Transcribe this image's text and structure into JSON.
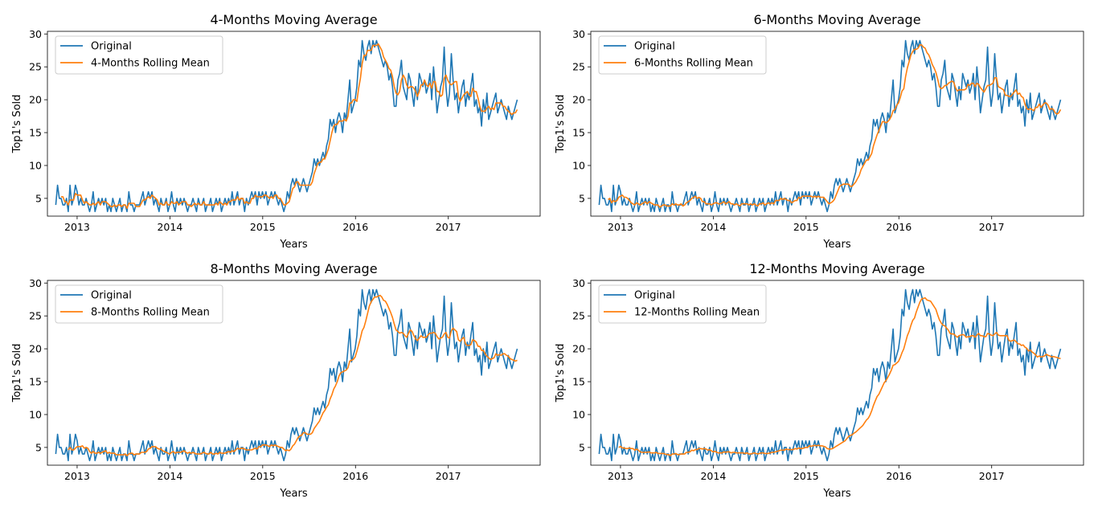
{
  "chart_data": [
    {
      "type": "line",
      "title": "4-Months Moving Average",
      "xlabel": "Years",
      "ylabel": "Top1's Sold",
      "x_ticks": [
        "2013",
        "2014",
        "2015",
        "2016",
        "2017"
      ],
      "y_ticks": [
        5,
        10,
        15,
        20,
        25,
        30
      ],
      "xlim": [
        2012.68,
        2017.99
      ],
      "ylim": [
        2.3,
        30.4
      ],
      "grid": false,
      "legend": "upper left",
      "window": 4,
      "series": [
        {
          "name": "Original",
          "color": "#1f77b4"
        },
        {
          "name": "4-Months Rolling Mean",
          "color": "#ff7f0e"
        }
      ]
    },
    {
      "type": "line",
      "title": "6-Months Moving Average",
      "xlabel": "Years",
      "ylabel": "Top1's Sold",
      "x_ticks": [
        "2013",
        "2014",
        "2015",
        "2016",
        "2017"
      ],
      "y_ticks": [
        5,
        10,
        15,
        20,
        25,
        30
      ],
      "xlim": [
        2012.68,
        2017.99
      ],
      "ylim": [
        2.3,
        30.4
      ],
      "grid": false,
      "legend": "upper left",
      "window": 6,
      "series": [
        {
          "name": "Original",
          "color": "#1f77b4"
        },
        {
          "name": "6-Months Rolling Mean",
          "color": "#ff7f0e"
        }
      ]
    },
    {
      "type": "line",
      "title": "8-Months Moving Average",
      "xlabel": "Years",
      "ylabel": "Top1's Sold",
      "x_ticks": [
        "2013",
        "2014",
        "2015",
        "2016",
        "2017"
      ],
      "y_ticks": [
        5,
        10,
        15,
        20,
        25,
        30
      ],
      "xlim": [
        2012.68,
        2017.99
      ],
      "ylim": [
        2.3,
        30.4
      ],
      "grid": false,
      "legend": "upper left",
      "window": 8,
      "series": [
        {
          "name": "Original",
          "color": "#1f77b4"
        },
        {
          "name": "8-Months Rolling Mean",
          "color": "#ff7f0e"
        }
      ]
    },
    {
      "type": "line",
      "title": "12-Months Moving Average",
      "xlabel": "Years",
      "ylabel": "Top1's Sold",
      "x_ticks": [
        "2013",
        "2014",
        "2015",
        "2016",
        "2017"
      ],
      "y_ticks": [
        5,
        10,
        15,
        20,
        25,
        30
      ],
      "xlim": [
        2012.68,
        2017.99
      ],
      "ylim": [
        2.3,
        30.4
      ],
      "grid": false,
      "legend": "upper left",
      "window": 12,
      "series": [
        {
          "name": "Original",
          "color": "#1f77b4"
        },
        {
          "name": "12-Months Rolling Mean",
          "color": "#ff7f0e"
        }
      ]
    }
  ],
  "original_series": {
    "start_year": 2012.77,
    "step_years": 0.0192,
    "values": [
      4,
      7,
      5,
      5,
      4,
      4,
      5,
      3,
      7,
      4,
      5,
      7,
      6,
      4,
      5,
      4,
      4,
      5,
      4,
      3,
      4,
      6,
      3,
      4,
      5,
      4,
      5,
      4,
      5,
      3,
      4,
      3,
      5,
      4,
      3,
      4,
      5,
      3,
      4,
      4,
      3,
      6,
      4,
      4,
      3,
      4,
      4,
      4,
      5,
      6,
      4,
      5,
      6,
      5,
      6,
      4,
      5,
      4,
      3,
      5,
      4,
      4,
      5,
      3,
      4,
      6,
      4,
      3,
      5,
      4,
      5,
      4,
      5,
      4,
      3,
      4,
      4,
      5,
      4,
      3,
      5,
      4,
      4,
      5,
      3,
      4,
      4,
      5,
      3,
      4,
      5,
      4,
      5,
      3,
      4,
      5,
      4,
      5,
      4,
      6,
      4,
      5,
      6,
      4,
      5,
      5,
      3,
      5,
      4,
      5,
      6,
      5,
      6,
      4,
      6,
      5,
      6,
      5,
      6,
      4,
      5,
      6,
      5,
      6,
      5,
      4,
      5,
      4,
      3,
      4,
      6,
      5,
      7,
      8,
      7,
      8,
      7,
      6,
      7,
      8,
      7,
      6,
      7,
      8,
      9,
      11,
      10,
      11,
      10,
      11,
      12,
      11,
      13,
      14,
      17,
      16,
      17,
      15,
      17,
      18,
      17,
      15,
      18,
      17,
      20,
      23,
      18,
      19,
      20,
      22,
      26,
      25,
      29,
      27,
      26,
      28,
      29,
      27,
      29,
      28,
      29,
      28,
      27,
      26,
      25,
      26,
      25,
      23,
      24,
      22,
      19,
      19,
      23,
      24,
      26,
      22,
      21,
      20,
      24,
      23,
      21,
      19,
      22,
      20,
      24,
      23,
      22,
      23,
      21,
      22,
      24,
      20,
      25,
      22,
      18,
      20,
      22,
      23,
      28,
      22,
      19,
      21,
      27,
      23,
      20,
      21,
      18,
      20,
      22,
      23,
      19,
      21,
      20,
      22,
      24,
      19,
      20,
      18,
      19,
      16,
      20,
      18,
      21,
      17,
      18,
      19,
      20,
      21,
      18,
      19,
      20,
      19,
      18,
      17,
      19,
      18,
      17,
      18,
      19,
      20
    ]
  }
}
